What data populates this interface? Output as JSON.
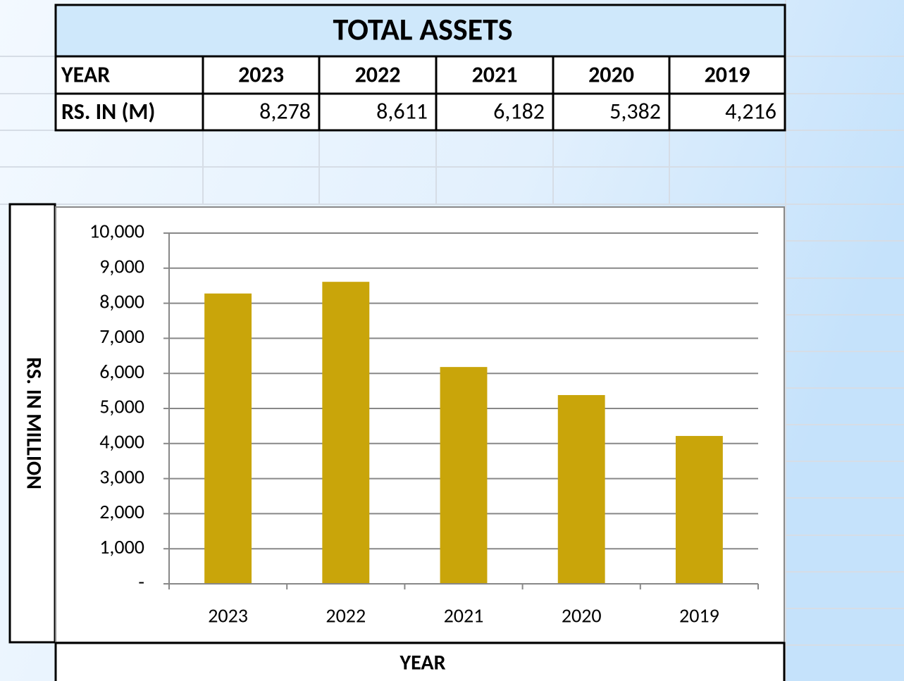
{
  "table": {
    "title": "TOTAL ASSETS",
    "header": [
      "YEAR",
      "2023",
      "2022",
      "2021",
      "2020",
      "2019"
    ],
    "rows": [
      [
        "RS. IN (M)",
        "8,278",
        "8,611",
        "6,182",
        "5,382",
        "4,216"
      ]
    ]
  },
  "chart_data": {
    "type": "bar",
    "categories": [
      "2023",
      "2022",
      "2021",
      "2020",
      "2019"
    ],
    "values": [
      8278,
      8611,
      6182,
      5382,
      4216
    ],
    "color": "#c9a50a",
    "ylim": [
      0,
      10000
    ],
    "yticks": [
      {
        "value": 0,
        "label": "-"
      },
      {
        "value": 1000,
        "label": "1,000"
      },
      {
        "value": 2000,
        "label": "2,000"
      },
      {
        "value": 3000,
        "label": "3,000"
      },
      {
        "value": 4000,
        "label": "4,000"
      },
      {
        "value": 5000,
        "label": "5,000"
      },
      {
        "value": 6000,
        "label": "6,000"
      },
      {
        "value": 7000,
        "label": "7,000"
      },
      {
        "value": 8000,
        "label": "8,000"
      },
      {
        "value": 9000,
        "label": "9,000"
      },
      {
        "value": 10000,
        "label": "10,000"
      }
    ],
    "grid": true,
    "x_label": "YEAR",
    "y_label": "RS. IN MILLION"
  }
}
